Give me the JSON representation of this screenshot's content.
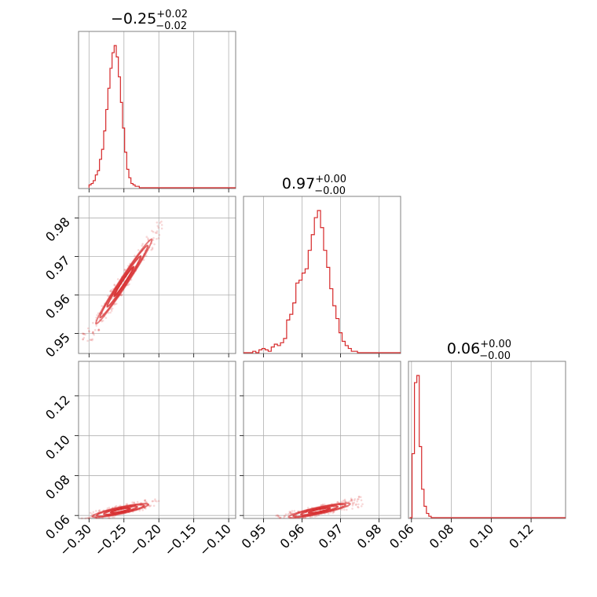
{
  "chart_data": {
    "type": "corner",
    "color": "#d62728",
    "grid": true,
    "parameters": [
      {
        "median": "−0.25",
        "plus": "+0.02",
        "minus": "−0.02",
        "range": [
          -0.315,
          -0.09
        ],
        "ticks": [
          -0.3,
          -0.25,
          -0.2,
          -0.15,
          -0.1
        ],
        "tick_labels": [
          "−0.30",
          "−0.25",
          "−0.20",
          "−0.15",
          "−0.10"
        ]
      },
      {
        "median": "0.97",
        "plus": "+0.00",
        "minus": "−0.00",
        "range": [
          0.9448,
          0.9856
        ],
        "ticks": [
          0.95,
          0.96,
          0.97,
          0.98
        ],
        "tick_labels": [
          "0.95",
          "0.96",
          "0.97",
          "0.98"
        ]
      },
      {
        "median": "0.06",
        "plus": "+0.00",
        "minus": "−0.00",
        "range": [
          0.0585,
          0.1373
        ],
        "ticks": [
          0.06,
          0.08,
          0.1,
          0.12
        ],
        "tick_labels": [
          "0.06",
          "0.08",
          "0.10",
          "0.12"
        ]
      }
    ],
    "histograms": [
      {
        "param": 0,
        "bin_edges_start": -0.3,
        "bin_width": 0.003,
        "counts": [
          0.02,
          0.03,
          0.05,
          0.09,
          0.12,
          0.2,
          0.27,
          0.4,
          0.55,
          0.7,
          0.84,
          0.95,
          1.0,
          0.92,
          0.78,
          0.6,
          0.42,
          0.25,
          0.13,
          0.07,
          0.03,
          0.02,
          0.01,
          0.01
        ]
      },
      {
        "param": 1,
        "bin_edges_start": 0.9448,
        "bin_width": 0.0008,
        "counts": [
          0,
          0,
          0,
          0.01,
          0,
          0.02,
          0.03,
          0.02,
          0.01,
          0.04,
          0.06,
          0.05,
          0.07,
          0.1,
          0.23,
          0.27,
          0.35,
          0.49,
          0.51,
          0.56,
          0.59,
          0.72,
          0.83,
          0.95,
          1.0,
          0.88,
          0.72,
          0.6,
          0.45,
          0.33,
          0.24,
          0.14,
          0.08,
          0.05,
          0.03,
          0.01,
          0.01,
          0,
          0,
          0,
          0,
          0
        ]
      },
      {
        "param": 2,
        "bin_edges_start": 0.0591,
        "bin_width": 0.0012,
        "counts": [
          0,
          0.45,
          0.95,
          1.0,
          0.5,
          0.2,
          0.08,
          0.03,
          0.01
        ]
      }
    ],
    "pairs": [
      {
        "x_param": 0,
        "y_param": 1,
        "center": [
          -0.25,
          0.9635
        ],
        "major_axis_end": [
          -0.21,
          0.9745
        ],
        "minor_halfwidth": 0.0006,
        "contour_scales": [
          0.35,
          0.6,
          0.85,
          1.0
        ]
      },
      {
        "x_param": 0,
        "y_param": 2,
        "center": [
          -0.255,
          0.0625
        ],
        "major_axis_end": [
          -0.215,
          0.0655
        ],
        "minor_halfwidth": 0.0009,
        "contour_scales": [
          0.35,
          0.6,
          0.85,
          1.0
        ]
      },
      {
        "x_param": 1,
        "y_param": 2,
        "center": [
          0.9645,
          0.0625
        ],
        "major_axis_end": [
          0.9725,
          0.0658
        ],
        "minor_halfwidth": 0.0009,
        "contour_scales": [
          0.35,
          0.6,
          0.85,
          1.0
        ]
      }
    ]
  }
}
